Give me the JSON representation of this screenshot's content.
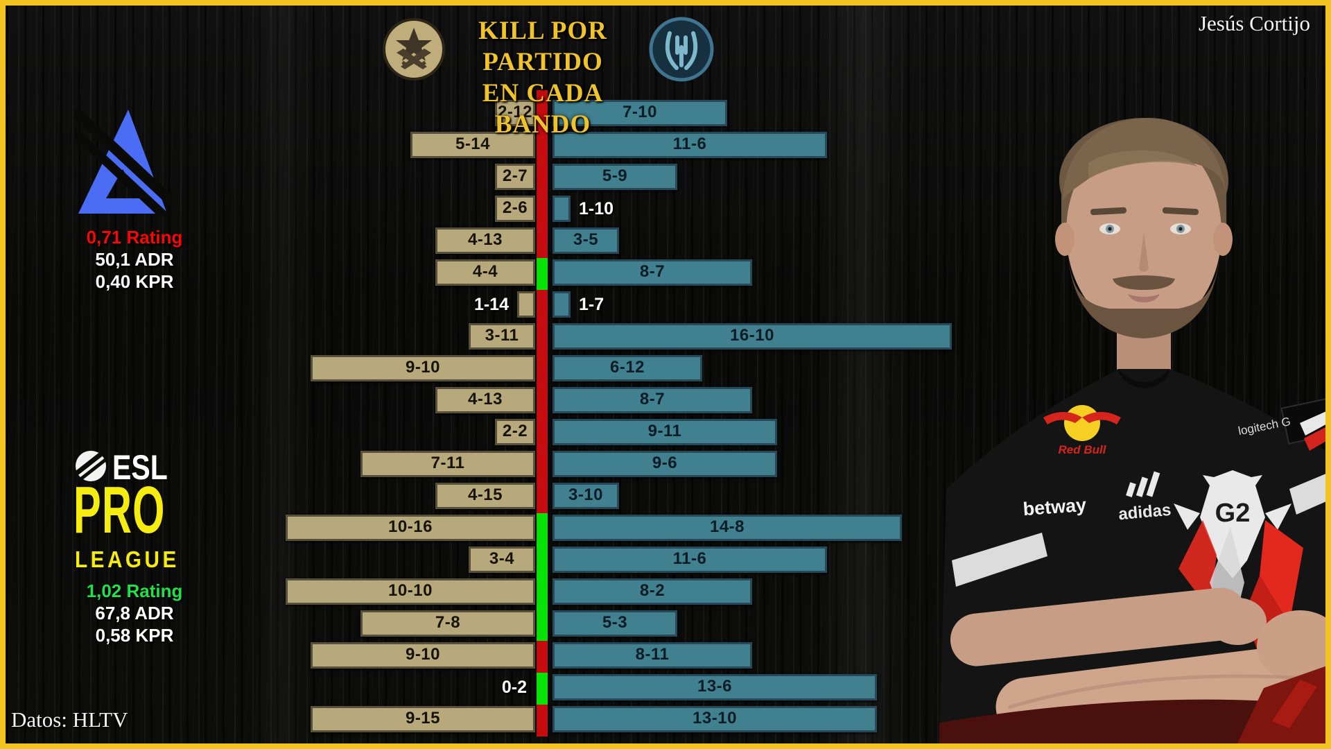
{
  "credit": "Jesús Cortijo",
  "source": "Datos: HLTV",
  "title": {
    "line1": "KILL POR PARTIDO",
    "line2": "EN CADA BANDO"
  },
  "left_panel": {
    "blast": {
      "name": "BLAST",
      "rating": "0,71 Rating",
      "adr": "50,1 ADR",
      "kpr": "0,40 KPR",
      "rating_color": "#fa0606"
    },
    "esl": {
      "line1": "ESL",
      "line2": "PRO",
      "line3": "LEAGUE",
      "rating": "1,02 Rating",
      "adr": "67,8 ADR",
      "kpr": "0,58 KPR",
      "rating_color": "#23e048"
    }
  },
  "photo": {
    "sponsors": {
      "betway": "betway",
      "adidas": "adidas",
      "logitech": "logitech G",
      "redbull": "Red Bull",
      "g2": "G2"
    }
  },
  "chart_data": {
    "type": "bar",
    "orientation": "diverging-horizontal",
    "title": "KILL POR PARTIDO EN CADA BANDO",
    "series": [
      {
        "name": "terrorist-side",
        "fill": "#b7a97b",
        "border": "#57503a",
        "label_color": "#171307"
      },
      {
        "name": "ct-side",
        "fill": "#40808f",
        "border": "#28495a",
        "label_color": "#0c1d26"
      }
    ],
    "axis_marker_colors": {
      "red": "#c50c10",
      "green": "#07e307"
    },
    "legend_icons": {
      "left": "terrorist-badge",
      "right": "ct-badge"
    },
    "rows": [
      {
        "t_label": "2-12",
        "ct_label": "7-10",
        "t_kills": 2,
        "ct_kills": 7,
        "marker": "red"
      },
      {
        "t_label": "5-14",
        "ct_label": "11-6",
        "t_kills": 5,
        "ct_kills": 11,
        "marker": "red"
      },
      {
        "t_label": "2-7",
        "ct_label": "5-9",
        "t_kills": 2,
        "ct_kills": 5,
        "marker": "red"
      },
      {
        "t_label": "2-6",
        "ct_label": "1-10",
        "t_kills": 2,
        "ct_kills": 1,
        "marker": "red"
      },
      {
        "t_label": "4-13",
        "ct_label": "3-5",
        "t_kills": 4,
        "ct_kills": 3,
        "marker": "red"
      },
      {
        "t_label": "4-4",
        "ct_label": "8-7",
        "t_kills": 4,
        "ct_kills": 8,
        "marker": "green"
      },
      {
        "t_label": "1-14",
        "ct_label": "1-7",
        "t_kills": 1,
        "ct_kills": 1,
        "marker": "red"
      },
      {
        "t_label": "3-11",
        "ct_label": "16-10",
        "t_kills": 3,
        "ct_kills": 16,
        "marker": "red"
      },
      {
        "t_label": "9-10",
        "ct_label": "6-12",
        "t_kills": 9,
        "ct_kills": 6,
        "marker": "red"
      },
      {
        "t_label": "4-13",
        "ct_label": "8-7",
        "t_kills": 4,
        "ct_kills": 8,
        "marker": "red"
      },
      {
        "t_label": "2-2",
        "ct_label": "9-11",
        "t_kills": 2,
        "ct_kills": 9,
        "marker": "red"
      },
      {
        "t_label": "7-11",
        "ct_label": "9-6",
        "t_kills": 7,
        "ct_kills": 9,
        "marker": "red"
      },
      {
        "t_label": "4-15",
        "ct_label": "3-10",
        "t_kills": 4,
        "ct_kills": 3,
        "marker": "red"
      },
      {
        "t_label": "10-16",
        "ct_label": "14-8",
        "t_kills": 10,
        "ct_kills": 14,
        "marker": "green"
      },
      {
        "t_label": "3-4",
        "ct_label": "11-6",
        "t_kills": 3,
        "ct_kills": 11,
        "marker": "green"
      },
      {
        "t_label": "10-10",
        "ct_label": "8-2",
        "t_kills": 10,
        "ct_kills": 8,
        "marker": "green"
      },
      {
        "t_label": "7-8",
        "ct_label": "5-3",
        "t_kills": 7,
        "ct_kills": 5,
        "marker": "green"
      },
      {
        "t_label": "9-10",
        "ct_label": "8-11",
        "t_kills": 9,
        "ct_kills": 8,
        "marker": "red"
      },
      {
        "t_label": "0-2",
        "ct_label": "13-6",
        "t_kills": 0,
        "ct_kills": 13,
        "marker": "green"
      },
      {
        "t_label": "9-15",
        "ct_label": "13-10",
        "t_kills": 9,
        "ct_kills": 13,
        "marker": "red"
      }
    ]
  }
}
